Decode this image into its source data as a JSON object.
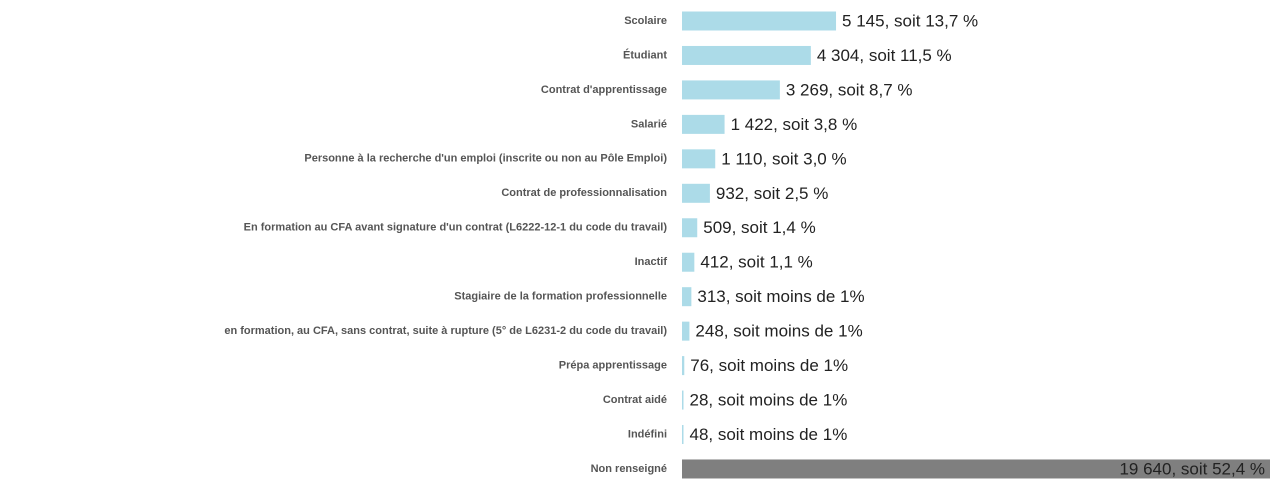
{
  "chart_data": {
    "type": "bar",
    "orientation": "horizontal",
    "categories": [
      "Scolaire",
      "Étudiant",
      "Contrat d'apprentissage",
      "Salarié",
      "Personne à la recherche d'un emploi (inscrite ou non au Pôle Emploi)",
      "Contrat de professionnalisation",
      "En formation au CFA avant signature d'un contrat (L6222-12-1 du code du travail)",
      "Inactif",
      "Stagiaire de la formation professionnelle",
      "en formation, au CFA, sans contrat, suite à rupture (5° de L6231-2 du code du travail)",
      "Prépa apprentissage",
      "Contrat aidé",
      "Indéfini",
      "Non renseigné"
    ],
    "values": [
      5145,
      4304,
      3269,
      1422,
      1110,
      932,
      509,
      412,
      313,
      248,
      76,
      28,
      48,
      19640
    ],
    "value_labels": [
      "5 145, soit 13,7 %",
      "4 304, soit 11,5 %",
      "3 269, soit 8,7 %",
      "1 422, soit 3,8 %",
      "1 110, soit 3,0 %",
      "932, soit 2,5 %",
      "509, soit 1,4 %",
      "412, soit 1,1 %",
      "313, soit moins de 1%",
      "248, soit moins de 1%",
      "76, soit moins de 1%",
      "28, soit moins de 1%",
      "48, soit moins de 1%",
      "19 640, soit 52,4 %"
    ],
    "colors": [
      "#acdbe8",
      "#acdbe8",
      "#acdbe8",
      "#acdbe8",
      "#acdbe8",
      "#acdbe8",
      "#acdbe8",
      "#acdbe8",
      "#acdbe8",
      "#acdbe8",
      "#acdbe8",
      "#acdbe8",
      "#acdbe8",
      "#7f7f7f"
    ]
  }
}
